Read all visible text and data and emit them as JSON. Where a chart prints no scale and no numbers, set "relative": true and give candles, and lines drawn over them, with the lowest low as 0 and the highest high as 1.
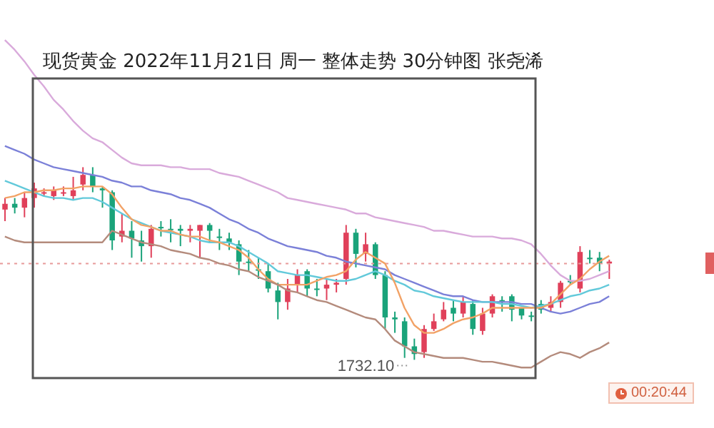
{
  "chart_data": {
    "type": "candlestick",
    "title": "现货黄金 2022年11月21日 周一 整体走势 30分钟图  张尧浠",
    "relative": true,
    "tick_labels": false,
    "categories": [
      null,
      null,
      null,
      null,
      null,
      null,
      null,
      null,
      null,
      null,
      null,
      null,
      null,
      null,
      null,
      null,
      null,
      null,
      null,
      null,
      null,
      null,
      null,
      null,
      null,
      null,
      null,
      null,
      null,
      null,
      null,
      null,
      null,
      null,
      null,
      null,
      null,
      null,
      null,
      null,
      null,
      null,
      null,
      null,
      null,
      null,
      null,
      null,
      null,
      null,
      null,
      null,
      null,
      null,
      null,
      null,
      null,
      null,
      null,
      null,
      null,
      null,
      null
    ],
    "ohlc": [
      [
        0.78,
        0.84,
        0.72,
        0.81
      ],
      [
        0.81,
        0.84,
        0.76,
        0.79
      ],
      [
        0.79,
        0.87,
        0.74,
        0.84
      ],
      [
        0.84,
        0.92,
        0.79,
        0.89
      ],
      [
        0.87,
        0.89,
        0.85,
        0.87
      ],
      [
        0.85,
        0.9,
        0.83,
        0.88
      ],
      [
        0.87,
        0.9,
        0.85,
        0.87
      ],
      [
        0.85,
        0.95,
        0.83,
        0.88
      ],
      [
        0.91,
        1.0,
        0.88,
        0.96
      ],
      [
        0.96,
        1.0,
        0.87,
        0.9
      ],
      [
        0.89,
        0.9,
        0.79,
        0.88
      ],
      [
        0.87,
        0.88,
        0.57,
        0.62
      ],
      [
        0.64,
        0.76,
        0.61,
        0.67
      ],
      [
        0.67,
        0.72,
        0.53,
        0.63
      ],
      [
        0.62,
        0.67,
        0.51,
        0.59
      ],
      [
        0.59,
        0.7,
        0.53,
        0.68
      ],
      [
        0.69,
        0.72,
        0.64,
        0.69
      ],
      [
        0.68,
        0.73,
        0.61,
        0.68
      ],
      [
        0.68,
        0.7,
        0.59,
        0.67
      ],
      [
        0.67,
        0.7,
        0.61,
        0.68
      ],
      [
        0.67,
        0.7,
        0.53,
        0.7
      ],
      [
        0.7,
        0.71,
        0.61,
        0.67
      ],
      [
        0.64,
        0.68,
        0.57,
        0.64
      ],
      [
        0.63,
        0.66,
        0.57,
        0.61
      ],
      [
        0.6,
        0.62,
        0.44,
        0.51
      ],
      [
        0.51,
        0.57,
        0.46,
        0.51
      ],
      [
        0.47,
        0.53,
        0.42,
        0.47
      ],
      [
        0.46,
        0.5,
        0.35,
        0.37
      ],
      [
        0.36,
        0.4,
        0.21,
        0.3
      ],
      [
        0.3,
        0.42,
        0.26,
        0.37
      ],
      [
        0.39,
        0.47,
        0.35,
        0.44
      ],
      [
        0.46,
        0.47,
        0.33,
        0.37
      ],
      [
        0.37,
        0.42,
        0.33,
        0.37
      ],
      [
        0.37,
        0.42,
        0.31,
        0.39
      ],
      [
        0.39,
        0.42,
        0.35,
        0.4
      ],
      [
        0.42,
        0.7,
        0.39,
        0.66
      ],
      [
        0.66,
        0.68,
        0.48,
        0.55
      ],
      [
        0.55,
        0.66,
        0.51,
        0.6
      ],
      [
        0.6,
        0.61,
        0.42,
        0.44
      ],
      [
        0.44,
        0.46,
        0.16,
        0.22
      ],
      [
        0.22,
        0.25,
        0.14,
        0.21
      ],
      [
        0.2,
        0.22,
        0.01,
        0.07
      ],
      [
        0.07,
        0.11,
        0,
        0.03
      ],
      [
        0.04,
        0.18,
        0.01,
        0.16
      ],
      [
        0.16,
        0.24,
        0.15,
        0.2
      ],
      [
        0.21,
        0.3,
        0.2,
        0.26
      ],
      [
        0.27,
        0.31,
        0.2,
        0.24
      ],
      [
        0.24,
        0.33,
        0.22,
        0.3
      ],
      [
        0.29,
        0.31,
        0.13,
        0.16
      ],
      [
        0.15,
        0.27,
        0.13,
        0.24
      ],
      [
        0.24,
        0.34,
        0.22,
        0.33
      ],
      [
        0.31,
        0.33,
        0.25,
        0.31
      ],
      [
        0.33,
        0.34,
        0.2,
        0.26
      ],
      [
        0.27,
        0.27,
        0.21,
        0.23
      ],
      [
        0.23,
        0.25,
        0.2,
        0.23
      ],
      [
        0.29,
        0.31,
        0.24,
        0.26
      ],
      [
        0.27,
        0.33,
        0.25,
        0.3
      ],
      [
        0.3,
        0.41,
        0.27,
        0.4
      ],
      [
        0.41,
        0.44,
        0.39,
        0.41
      ],
      [
        0.37,
        0.59,
        0.35,
        0.56
      ],
      [
        0.53,
        0.57,
        0.5,
        0.53
      ],
      [
        0.53,
        0.56,
        0.46,
        0.5
      ],
      [
        0.5,
        0.52,
        0.42,
        0.51
      ]
    ],
    "colors": [
      "#e0405a",
      "#1aa37a",
      "#e0405a",
      "#e0405a",
      "#e0405a",
      "#e0405a",
      "#e0405a",
      "#e0405a",
      "#e0405a",
      "#1aa37a",
      "#1aa37a",
      "#1aa37a",
      "#e0405a",
      "#1aa37a",
      "#1aa37a",
      "#e0405a",
      "#1aa37a",
      "#1aa37a",
      "#1aa37a",
      "#e0405a",
      "#e0405a",
      "#1aa37a",
      "#1aa37a",
      "#1aa37a",
      "#1aa37a",
      "#1aa37a",
      "#1aa37a",
      "#1aa37a",
      "#1aa37a",
      "#e0405a",
      "#e0405a",
      "#1aa37a",
      "#1aa37a",
      "#e0405a",
      "#e0405a",
      "#e0405a",
      "#1aa37a",
      "#e0405a",
      "#1aa37a",
      "#1aa37a",
      "#1aa37a",
      "#1aa37a",
      "#1aa37a",
      "#e0405a",
      "#e0405a",
      "#e0405a",
      "#1aa37a",
      "#e0405a",
      "#1aa37a",
      "#e0405a",
      "#e0405a",
      "#1aa37a",
      "#1aa37a",
      "#1aa37a",
      "#1aa37a",
      "#1aa37a",
      "#e0405a",
      "#e0405a",
      "#1aa37a",
      "#e0405a",
      "#1aa37a",
      "#1aa37a",
      "#e0405a"
    ],
    "series": [
      {
        "type": "line",
        "color": "#d9aadb",
        "values": [
          1.66,
          1.61,
          1.55,
          1.48,
          1.42,
          1.35,
          1.3,
          1.24,
          1.19,
          1.15,
          1.13,
          1.09,
          1.05,
          1.02,
          1.01,
          1.01,
          1.01,
          1.0,
          1.0,
          0.99,
          0.99,
          0.99,
          0.97,
          0.96,
          0.95,
          0.93,
          0.91,
          0.89,
          0.87,
          0.84,
          0.83,
          0.82,
          0.81,
          0.8,
          0.79,
          0.78,
          0.76,
          0.76,
          0.74,
          0.73,
          0.72,
          0.71,
          0.7,
          0.69,
          0.67,
          0.67,
          0.66,
          0.65,
          0.64,
          0.64,
          0.64,
          0.63,
          0.63,
          0.62,
          0.6,
          0.55,
          0.49,
          0.44,
          0.41,
          0.41,
          0.42,
          0.44,
          0.46
        ]
      },
      {
        "type": "line",
        "color": "#7b80d8",
        "values": [
          1.11,
          1.09,
          1.07,
          1.04,
          1.02,
          1.0,
          0.99,
          0.98,
          0.97,
          0.96,
          0.95,
          0.93,
          0.92,
          0.9,
          0.9,
          0.88,
          0.87,
          0.86,
          0.84,
          0.83,
          0.81,
          0.79,
          0.76,
          0.73,
          0.71,
          0.68,
          0.66,
          0.63,
          0.61,
          0.59,
          0.58,
          0.57,
          0.56,
          0.54,
          0.53,
          0.51,
          0.5,
          0.49,
          0.48,
          0.47,
          0.44,
          0.42,
          0.4,
          0.38,
          0.36,
          0.34,
          0.33,
          0.33,
          0.31,
          0.3,
          0.3,
          0.3,
          0.3,
          0.29,
          0.29,
          0.27,
          0.25,
          0.24,
          0.25,
          0.27,
          0.29,
          0.3,
          0.33
        ]
      },
      {
        "type": "line",
        "color": "#62c9da",
        "values": [
          0.93,
          0.91,
          0.89,
          0.87,
          0.85,
          0.84,
          0.84,
          0.83,
          0.84,
          0.84,
          0.82,
          0.79,
          0.76,
          0.73,
          0.71,
          0.69,
          0.67,
          0.66,
          0.65,
          0.64,
          0.62,
          0.61,
          0.61,
          0.61,
          0.59,
          0.56,
          0.53,
          0.5,
          0.46,
          0.45,
          0.44,
          0.44,
          0.43,
          0.42,
          0.41,
          0.41,
          0.42,
          0.44,
          0.46,
          0.44,
          0.41,
          0.39,
          0.36,
          0.35,
          0.33,
          0.32,
          0.31,
          0.3,
          0.3,
          0.3,
          0.3,
          0.29,
          0.29,
          0.28,
          0.27,
          0.28,
          0.29,
          0.31,
          0.33,
          0.34,
          0.36,
          0.37,
          0.39
        ]
      },
      {
        "type": "line",
        "color": "#f2a266",
        "values": [
          0.84,
          0.85,
          0.87,
          0.87,
          0.88,
          0.88,
          0.89,
          0.89,
          0.9,
          0.9,
          0.9,
          0.86,
          0.79,
          0.73,
          0.7,
          0.69,
          0.67,
          0.67,
          0.65,
          0.64,
          0.64,
          0.62,
          0.61,
          0.59,
          0.57,
          0.53,
          0.47,
          0.42,
          0.39,
          0.39,
          0.39,
          0.39,
          0.41,
          0.43,
          0.44,
          0.46,
          0.52,
          0.56,
          0.53,
          0.5,
          0.4,
          0.27,
          0.18,
          0.14,
          0.14,
          0.16,
          0.19,
          0.21,
          0.22,
          0.24,
          0.27,
          0.27,
          0.27,
          0.27,
          0.27,
          0.27,
          0.29,
          0.34,
          0.39,
          0.42,
          0.47,
          0.51,
          0.54
        ]
      },
      {
        "type": "line",
        "color": "#b48b7c",
        "values": [
          0.64,
          0.62,
          0.61,
          0.61,
          0.61,
          0.61,
          0.61,
          0.61,
          0.61,
          0.61,
          0.61,
          0.67,
          0.65,
          0.63,
          0.61,
          0.6,
          0.59,
          0.57,
          0.56,
          0.55,
          0.53,
          0.52,
          0.5,
          0.49,
          0.47,
          0.46,
          0.43,
          0.41,
          0.39,
          0.36,
          0.35,
          0.33,
          0.31,
          0.3,
          0.28,
          0.26,
          0.24,
          0.22,
          0.21,
          0.16,
          0.1,
          0.07,
          0.04,
          0.03,
          0.02,
          0.01,
          0.01,
          0.01,
          0,
          -0.01,
          -0.01,
          -0.02,
          -0.03,
          -0.04,
          -0.04,
          -0.01,
          0.02,
          0.04,
          0.03,
          0.01,
          0.04,
          0.06,
          0.09
        ]
      }
    ],
    "ref_lines": [
      {
        "axis": "y",
        "value": 0.5,
        "color": "#e89a9a",
        "line_style": "dotted"
      }
    ],
    "annotations": [
      "1732.10",
      "00:20:44"
    ]
  }
}
